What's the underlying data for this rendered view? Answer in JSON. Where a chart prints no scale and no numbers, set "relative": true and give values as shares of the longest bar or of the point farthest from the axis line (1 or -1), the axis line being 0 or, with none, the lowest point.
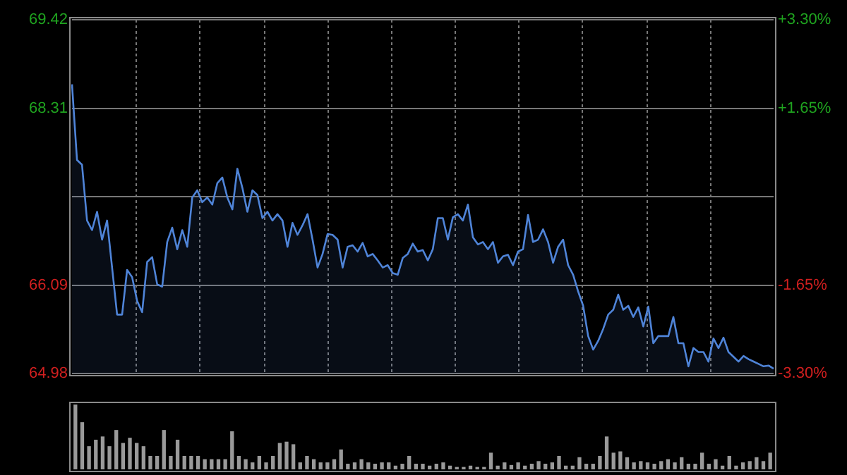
{
  "chart_data": [
    {
      "type": "area",
      "color": "#4f84d8",
      "grid": true,
      "legend": false,
      "categories": [
        null,
        null,
        null,
        null,
        null,
        null,
        null,
        null,
        null,
        null,
        null,
        null,
        null,
        null,
        null,
        null,
        null,
        null,
        null,
        null,
        null,
        null,
        null,
        null,
        null,
        null,
        null,
        null,
        null,
        null,
        null,
        null,
        null,
        null,
        null,
        null,
        null,
        null,
        null,
        null,
        null,
        null,
        null,
        null,
        null,
        null,
        null,
        null,
        null,
        null,
        null,
        null,
        null,
        null,
        null,
        null,
        null,
        null,
        null,
        null,
        null,
        null,
        null,
        null,
        null,
        null,
        null,
        null,
        null,
        null,
        null,
        null,
        null,
        null,
        null,
        null,
        null,
        null,
        null,
        null,
        null,
        null,
        null,
        null,
        null,
        null,
        null,
        null,
        null,
        null,
        null,
        null,
        null,
        null,
        null,
        null,
        null,
        null,
        null,
        null,
        null,
        null,
        null,
        null,
        null,
        null,
        null,
        null,
        null,
        null,
        null,
        null,
        null,
        null,
        null,
        null,
        null,
        null,
        null,
        null,
        null,
        null,
        null,
        null,
        null,
        null,
        null,
        null,
        null,
        null,
        null,
        null,
        null,
        null,
        null,
        null,
        null,
        null,
        null,
        null,
        null
      ],
      "values": [
        68.61,
        67.66,
        67.6,
        66.9,
        66.78,
        67.01,
        66.66,
        66.9,
        66.31,
        65.72,
        65.72,
        66.28,
        66.19,
        65.89,
        65.75,
        66.38,
        66.44,
        66.1,
        66.07,
        66.63,
        66.81,
        66.54,
        66.78,
        66.57,
        67.19,
        67.28,
        67.13,
        67.19,
        67.1,
        67.37,
        67.44,
        67.19,
        67.04,
        67.55,
        67.31,
        67.01,
        67.28,
        67.22,
        66.93,
        67.01,
        66.9,
        66.98,
        66.9,
        66.57,
        66.87,
        66.72,
        66.84,
        66.98,
        66.66,
        66.31,
        66.48,
        66.73,
        66.72,
        66.66,
        66.31,
        66.57,
        66.59,
        66.51,
        66.62,
        66.45,
        66.48,
        66.4,
        66.31,
        66.34,
        66.24,
        66.22,
        66.43,
        66.48,
        66.61,
        66.51,
        66.53,
        66.4,
        66.54,
        66.93,
        66.93,
        66.66,
        66.94,
        66.98,
        66.9,
        67.1,
        66.69,
        66.6,
        66.63,
        66.54,
        66.63,
        66.37,
        66.45,
        66.47,
        66.34,
        66.51,
        66.54,
        66.97,
        66.63,
        66.66,
        66.79,
        66.63,
        66.37,
        66.57,
        66.66,
        66.34,
        66.22,
        66.01,
        65.83,
        65.45,
        65.28,
        65.39,
        65.54,
        65.72,
        65.78,
        65.97,
        65.78,
        65.83,
        65.69,
        65.81,
        65.57,
        65.82,
        65.36,
        65.45,
        65.45,
        65.45,
        65.69,
        65.36,
        65.36,
        65.07,
        65.3,
        65.25,
        65.25,
        65.13,
        65.42,
        65.3,
        65.43,
        65.25,
        65.19,
        65.13,
        65.2,
        65.16,
        65.13,
        65.1,
        65.07,
        65.08,
        65.04
      ],
      "ylim": [
        64.98,
        69.42
      ],
      "yticks": [
        64.98,
        66.09,
        {
          "value": 67.2,
          "label": null
        },
        68.31,
        69.42
      ],
      "y2lim": [
        -3.3,
        3.3
      ],
      "y2ticks": [
        {
          "value": -3.3,
          "label": "-3.30%"
        },
        {
          "value": -1.65,
          "label": "-1.65%"
        },
        {
          "value": 0,
          "label": null
        },
        {
          "value": 1.65,
          "label": "+1.65%"
        },
        {
          "value": 3.3,
          "label": "+3.30%"
        }
      ]
    },
    {
      "type": "bar",
      "color": "#9a9a9a",
      "relative": true,
      "legend": false,
      "categories": [
        null,
        null,
        null,
        null,
        null,
        null,
        null,
        null,
        null,
        null,
        null,
        null,
        null,
        null,
        null,
        null,
        null,
        null,
        null,
        null,
        null,
        null,
        null,
        null,
        null,
        null,
        null,
        null,
        null,
        null,
        null,
        null,
        null,
        null,
        null,
        null,
        null,
        null,
        null,
        null,
        null,
        null,
        null,
        null,
        null,
        null,
        null,
        null,
        null,
        null,
        null,
        null,
        null,
        null,
        null,
        null,
        null,
        null,
        null,
        null,
        null,
        null,
        null,
        null,
        null,
        null,
        null,
        null,
        null,
        null,
        null,
        null,
        null,
        null,
        null,
        null,
        null,
        null,
        null,
        null,
        null,
        null,
        null,
        null,
        null,
        null,
        null,
        null,
        null,
        null,
        null,
        null,
        null,
        null,
        null,
        null,
        null,
        null,
        null,
        null,
        null,
        null,
        null
      ],
      "values": [
        1,
        0.72,
        0.35,
        0.45,
        0.5,
        0.35,
        0.6,
        0.4,
        0.48,
        0.4,
        0.35,
        0.2,
        0.2,
        0.6,
        0.2,
        0.45,
        0.2,
        0.2,
        0.2,
        0.15,
        0.15,
        0.15,
        0.15,
        0.58,
        0.2,
        0.15,
        0.1,
        0.2,
        0.1,
        0.2,
        0.4,
        0.42,
        0.38,
        0.1,
        0.2,
        0.15,
        0.1,
        0.1,
        0.15,
        0.3,
        0.08,
        0.1,
        0.15,
        0.1,
        0.08,
        0.1,
        0.1,
        0.05,
        0.08,
        0.2,
        0.08,
        0.08,
        0.05,
        0.08,
        0.1,
        0.05,
        0.03,
        0.03,
        0.05,
        0.03,
        0.03,
        0.25,
        0.05,
        0.1,
        0.06,
        0.1,
        0.05,
        0.08,
        0.12,
        0.08,
        0.1,
        0.2,
        0.05,
        0.05,
        0.18,
        0.08,
        0.08,
        0.2,
        0.5,
        0.25,
        0.27,
        0.18,
        0.1,
        0.12,
        0.1,
        0.08,
        0.12,
        0.15,
        0.1,
        0.18,
        0.08,
        0.08,
        0.25,
        0.08,
        0.15,
        0.05,
        0.2,
        0.05,
        0.1,
        0.12,
        0.18,
        0.12,
        0.25
      ]
    }
  ]
}
